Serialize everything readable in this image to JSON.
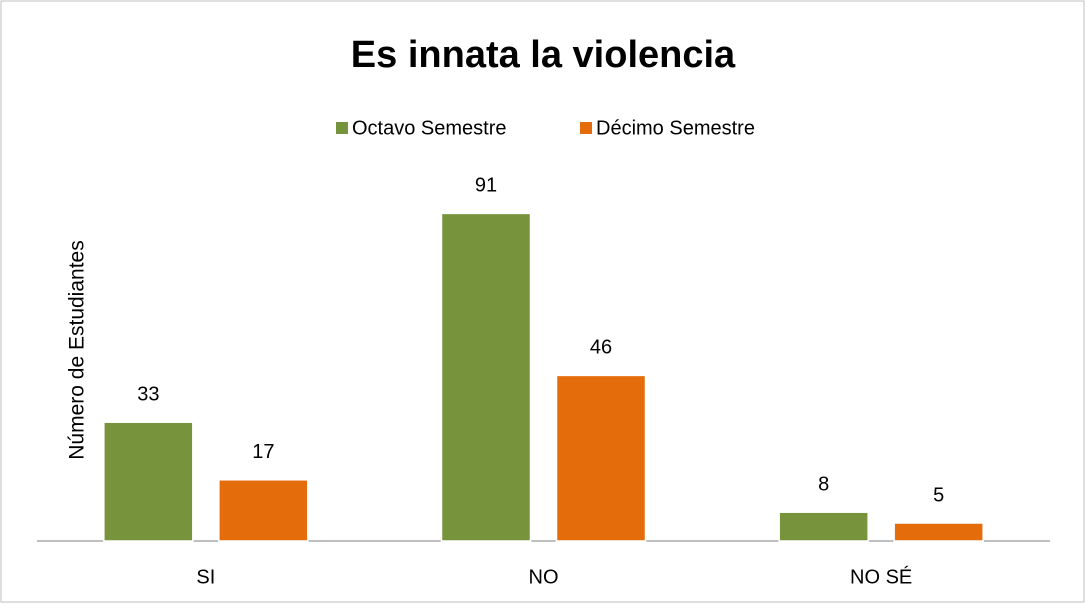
{
  "chart_data": {
    "type": "bar",
    "title": "Es innata la violencia",
    "y_label": "Número de Estudiantes",
    "categories": [
      "SI",
      "NO",
      "NO SÉ"
    ],
    "series": [
      {
        "name": "Octavo Semestre",
        "color": "#77933c",
        "values": [
          33,
          91,
          8
        ]
      },
      {
        "name": "Décimo Semestre",
        "color": "#e46c0a",
        "values": [
          17,
          46,
          5
        ]
      }
    ],
    "ylim": [
      0,
      100
    ],
    "legend": "top"
  }
}
